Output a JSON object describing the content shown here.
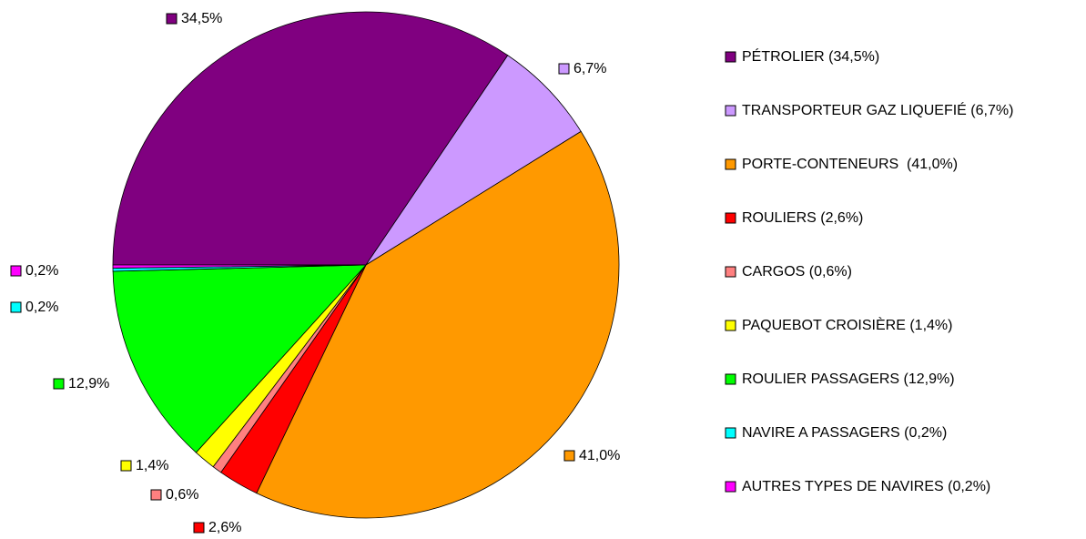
{
  "chart_data": {
    "type": "pie",
    "categories": [
      "PÉTROLIER (34,5%)",
      "TRANSPORTEUR GAZ LIQUEFIÉ (6,7%)",
      "PORTE-CONTENEURS  (41,0%)",
      "ROULIERS (2,6%)",
      "CARGOS (0,6%)",
      "PAQUEBOT CROISIÈRE (1,4%)",
      "ROULIER PASSAGERS (12,9%)",
      "NAVIRE A PASSAGERS (0,2%)",
      "AUTRES TYPES DE NAVIRES (0,2%)"
    ],
    "values": [
      34.5,
      6.7,
      41.0,
      2.6,
      0.6,
      1.4,
      12.9,
      0.2,
      0.2
    ],
    "value_labels": [
      "34,5%",
      "6,7%",
      "41,0%",
      "2,6%",
      "0,6%",
      "1,4%",
      "12,9%",
      "0,2%",
      "0,2%"
    ],
    "colors": [
      "#800080",
      "#cc99ff",
      "#ff9900",
      "#ff0000",
      "#ff8080",
      "#ffff00",
      "#00ff00",
      "#00ffff",
      "#ff00ff"
    ],
    "legend": "right"
  }
}
